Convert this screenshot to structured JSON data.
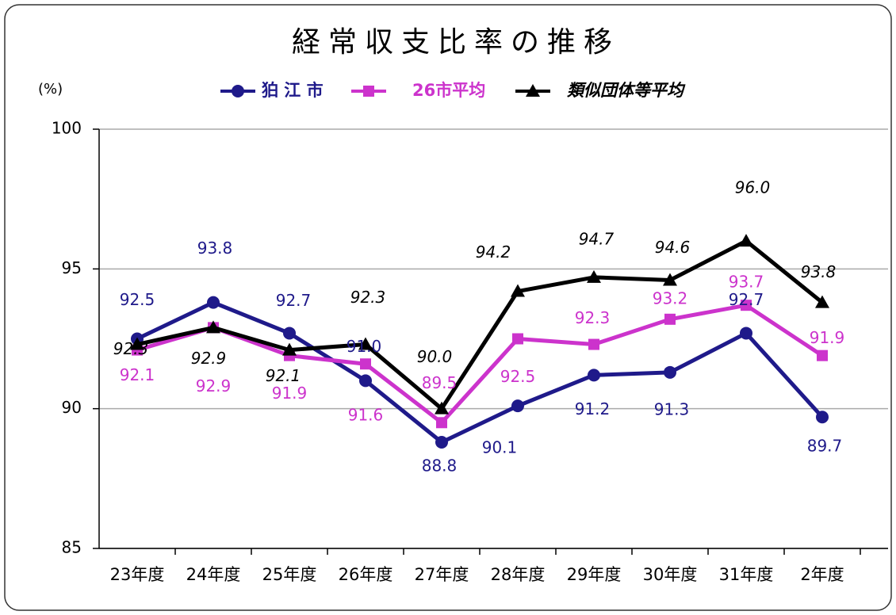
{
  "chart_data": {
    "type": "line",
    "title": "経常収支比率の推移",
    "y_label": "(%)",
    "categories": [
      "23年度",
      "24年度",
      "25年度",
      "26年度",
      "27年度",
      "28年度",
      "29年度",
      "30年度",
      "31年度",
      "2年度"
    ],
    "series": [
      {
        "name": "狛 江 市",
        "color": "#1f1a8a",
        "marker": "circle",
        "values": [
          92.5,
          93.8,
          92.7,
          91.0,
          88.8,
          90.1,
          91.2,
          91.3,
          92.7,
          89.7
        ],
        "value_labels": [
          "92.5",
          "93.8",
          "92.7",
          "91.0",
          "88.8",
          "90.1",
          "91.2",
          "91.3",
          "92.7",
          "89.7"
        ]
      },
      {
        "name": "26市平均",
        "color": "#cc33cc",
        "marker": "square",
        "values": [
          92.1,
          92.9,
          91.9,
          91.6,
          89.5,
          92.5,
          92.3,
          93.2,
          93.7,
          91.9
        ],
        "value_labels": [
          "92.1",
          "92.9",
          "91.9",
          "91.6",
          "89.5",
          "92.5",
          "92.3",
          "93.2",
          "93.7",
          "91.9"
        ]
      },
      {
        "name": "類似団体等平均",
        "color": "#000000",
        "marker": "triangle",
        "values": [
          92.3,
          92.9,
          92.1,
          92.3,
          90.0,
          94.2,
          94.7,
          94.6,
          96.0,
          93.8
        ],
        "value_labels": [
          "92.3",
          "92.9",
          "92.1",
          "92.3",
          "90.0",
          "94.2",
          "94.7",
          "94.6",
          "96.0",
          "93.8"
        ]
      }
    ],
    "ylim": [
      85,
      100
    ],
    "yticks": [
      85,
      90,
      95,
      100
    ],
    "grid": true
  }
}
